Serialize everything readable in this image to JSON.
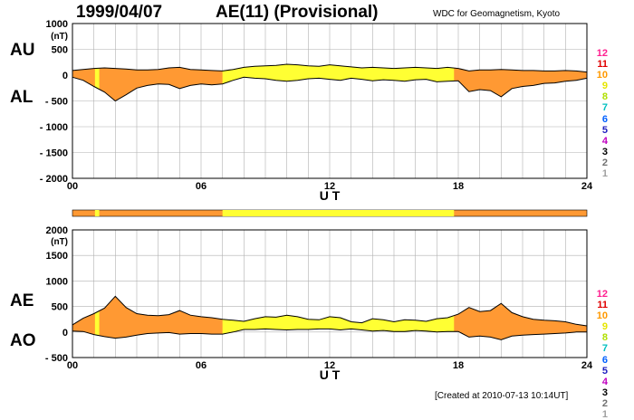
{
  "header": {
    "date": "1999/04/07",
    "title": "AE(11) (Provisional)",
    "source": "WDC for Geomagnetism, Kyoto"
  },
  "footer": {
    "created": "[Created at 2010-07-13 10:14UT]"
  },
  "station_rail": {
    "labels": [
      "12",
      "11",
      "10",
      "9",
      "8",
      "7",
      "6",
      "5",
      "4",
      "3",
      "2",
      "1"
    ],
    "colors": [
      "#ff1f8f",
      "#e00000",
      "#ff9900",
      "#e6e600",
      "#b0e000",
      "#00c0c0",
      "#0060ff",
      "#2020c0",
      "#c000c0",
      "#000000",
      "#707070",
      "#a0a0a0"
    ]
  },
  "colors": {
    "coverage_colors": {
      "12": "#ffff33",
      "11": "#ff9933"
    },
    "outline": "#000000",
    "grid": "#b0b0b0"
  },
  "chart_data": [
    {
      "type": "area",
      "panel": "AU/AL",
      "series_labels": [
        "AU",
        "AL"
      ],
      "unit": "(nT)",
      "xlabel": "U T",
      "x_ticks": [
        "00",
        "06",
        "12",
        "18",
        "24"
      ],
      "xlim": [
        0,
        24
      ],
      "y_ticks": [
        "1000",
        "500",
        "0",
        "- 500",
        "- 1000",
        "- 1500",
        "- 2000"
      ],
      "ylim": [
        -2000,
        1000
      ],
      "x": [
        0,
        0.5,
        1,
        1.5,
        2,
        2.5,
        3,
        3.5,
        4,
        4.5,
        5,
        5.5,
        6,
        6.5,
        7,
        7.5,
        8,
        8.5,
        9,
        9.5,
        10,
        10.5,
        11,
        11.5,
        12,
        12.5,
        13,
        13.5,
        14,
        14.5,
        15,
        15.5,
        16,
        16.5,
        17,
        17.5,
        18,
        18.5,
        19,
        19.5,
        20,
        20.5,
        21,
        21.5,
        22,
        22.5,
        23,
        23.5,
        24
      ],
      "series": [
        {
          "name": "AU",
          "values": [
            90,
            110,
            130,
            140,
            130,
            120,
            100,
            100,
            110,
            140,
            150,
            110,
            100,
            90,
            80,
            110,
            150,
            170,
            180,
            190,
            210,
            200,
            180,
            170,
            200,
            180,
            160,
            140,
            150,
            140,
            130,
            140,
            150,
            140,
            130,
            150,
            130,
            80,
            100,
            100,
            110,
            100,
            90,
            90,
            80,
            80,
            90,
            80,
            60
          ]
        },
        {
          "name": "AL",
          "values": [
            -40,
            -100,
            -220,
            -330,
            -500,
            -380,
            -250,
            -200,
            -170,
            -180,
            -260,
            -200,
            -170,
            -190,
            -170,
            -100,
            -40,
            -60,
            -70,
            -100,
            -120,
            -100,
            -70,
            -60,
            -80,
            -100,
            -60,
            -80,
            -110,
            -90,
            -100,
            -120,
            -90,
            -80,
            -130,
            -120,
            -110,
            -320,
            -280,
            -300,
            -420,
            -260,
            -220,
            -200,
            -160,
            -150,
            -120,
            -100,
            -60
          ]
        }
      ]
    },
    {
      "type": "area",
      "panel": "AE/AO",
      "series_labels": [
        "AE",
        "AO"
      ],
      "unit": "(nT)",
      "xlabel": "U T",
      "x_ticks": [
        "00",
        "06",
        "12",
        "18",
        "24"
      ],
      "xlim": [
        0,
        24
      ],
      "y_ticks": [
        "2000",
        "1500",
        "1000",
        "500",
        "0",
        "- 500"
      ],
      "ylim": [
        -500,
        2000
      ],
      "x": [
        0,
        0.5,
        1,
        1.5,
        2,
        2.5,
        3,
        3.5,
        4,
        4.5,
        5,
        5.5,
        6,
        6.5,
        7,
        7.5,
        8,
        8.5,
        9,
        9.5,
        10,
        10.5,
        11,
        11.5,
        12,
        12.5,
        13,
        13.5,
        14,
        14.5,
        15,
        15.5,
        16,
        16.5,
        17,
        17.5,
        18,
        18.5,
        19,
        19.5,
        20,
        20.5,
        21,
        21.5,
        22,
        22.5,
        23,
        23.5,
        24
      ],
      "series": [
        {
          "name": "AE",
          "values": [
            140,
            270,
            360,
            470,
            700,
            480,
            360,
            330,
            320,
            340,
            420,
            330,
            300,
            280,
            250,
            230,
            210,
            260,
            300,
            290,
            330,
            300,
            250,
            240,
            300,
            280,
            200,
            180,
            260,
            240,
            200,
            240,
            230,
            210,
            260,
            280,
            350,
            480,
            400,
            420,
            560,
            380,
            300,
            250,
            230,
            220,
            200,
            150,
            120
          ]
        },
        {
          "name": "AO",
          "values": [
            20,
            10,
            -50,
            -90,
            -120,
            -100,
            -60,
            -30,
            -20,
            -10,
            -40,
            -30,
            -30,
            -40,
            -40,
            0,
            50,
            50,
            60,
            50,
            40,
            50,
            50,
            60,
            60,
            40,
            60,
            40,
            20,
            30,
            10,
            10,
            30,
            20,
            0,
            10,
            10,
            -100,
            -80,
            -100,
            -150,
            -80,
            -60,
            -50,
            -40,
            -30,
            -20,
            0,
            0
          ]
        }
      ]
    }
  ]
}
